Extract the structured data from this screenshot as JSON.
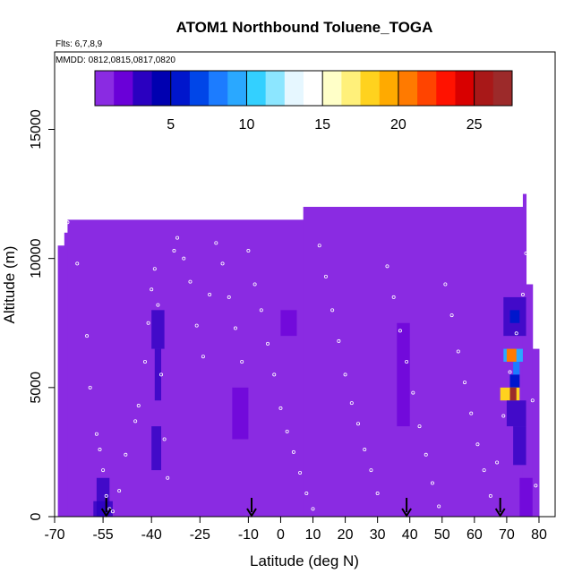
{
  "chart_data": {
    "type": "heatmap",
    "title": "ATOM1 Northbound Toluene_TOGA",
    "flights_label": "Flts: 6,7,8,9",
    "dates_label": "MMDD: 0812,0815,0817,0820",
    "xlabel": "Latitude (deg N)",
    "ylabel": "Altitude (m)",
    "xlim": [
      -70,
      85
    ],
    "ylim": [
      0,
      18000
    ],
    "x_ticks": [
      -70,
      -55,
      -40,
      -25,
      -10,
      0,
      10,
      20,
      30,
      40,
      50,
      60,
      70,
      80
    ],
    "x_tick_labels": [
      "-70",
      "-55",
      "-40",
      "-25",
      "-10",
      "0",
      "10",
      "20",
      "30",
      "40",
      "50",
      "60",
      "70",
      "80"
    ],
    "y_ticks": [
      0,
      5000,
      10000,
      15000
    ],
    "y_tick_labels": [
      "0",
      "5000",
      "10000",
      "15000"
    ],
    "colorbar": {
      "min": 0,
      "max": 27.5,
      "ticks": [
        5,
        10,
        15,
        20,
        25
      ],
      "tick_labels": [
        "5",
        "10",
        "15",
        "20",
        "25"
      ],
      "colors": [
        "#8a2be2",
        "#6a00d8",
        "#2a00c0",
        "#0000b0",
        "#0016cc",
        "#0046e8",
        "#1c7cff",
        "#2aa8ff",
        "#33d0ff",
        "#8ce6ff",
        "#e6f7ff",
        "#ffffff",
        "#ffffc8",
        "#fff07a",
        "#ffd21e",
        "#ffaa00",
        "#ff7a00",
        "#ff4400",
        "#ff1200",
        "#d80000",
        "#a81818",
        "#9c2a2a"
      ]
    },
    "background_value": 1.2,
    "field_extent": {
      "x": [
        -69,
        80
      ],
      "top_segments": [
        {
          "x": [
            -69,
            -67
          ],
          "top": 10500
        },
        {
          "x": [
            -67,
            -66
          ],
          "top": 11000
        },
        {
          "x": [
            -66,
            7
          ],
          "top": 11500
        },
        {
          "x": [
            7,
            75
          ],
          "top": 12000
        },
        {
          "x": [
            75,
            76
          ],
          "top": 12500
        },
        {
          "x": [
            76,
            78
          ],
          "top": 9000
        },
        {
          "x": [
            78,
            80
          ],
          "top": 6500
        }
      ]
    },
    "anomalies": [
      {
        "x": [
          -40,
          -36
        ],
        "y": [
          6500,
          8000
        ],
        "value": 3
      },
      {
        "x": [
          -39,
          -37
        ],
        "y": [
          4500,
          6500
        ],
        "value": 2.5
      },
      {
        "x": [
          -40,
          -37
        ],
        "y": [
          1800,
          3500
        ],
        "value": 2.5
      },
      {
        "x": [
          -57,
          -53
        ],
        "y": [
          0,
          1500
        ],
        "value": 3
      },
      {
        "x": [
          -58,
          -52
        ],
        "y": [
          0,
          600
        ],
        "value": 2.5
      },
      {
        "x": [
          -15,
          -10
        ],
        "y": [
          3000,
          5000
        ],
        "value": 2
      },
      {
        "x": [
          0,
          5
        ],
        "y": [
          7000,
          8000
        ],
        "value": 2
      },
      {
        "x": [
          36,
          40
        ],
        "y": [
          3500,
          7500
        ],
        "value": 2
      },
      {
        "x": [
          69,
          76
        ],
        "y": [
          7000,
          8500
        ],
        "value": 3.5
      },
      {
        "x": [
          71,
          74
        ],
        "y": [
          7500,
          8000
        ],
        "value": 6
      },
      {
        "x": [
          69,
          75
        ],
        "y": [
          6000,
          6500
        ],
        "value": 9
      },
      {
        "x": [
          70,
          73
        ],
        "y": [
          6000,
          6500
        ],
        "value": 20
      },
      {
        "x": [
          72,
          74
        ],
        "y": [
          5500,
          6000
        ],
        "value": 8
      },
      {
        "x": [
          71,
          74
        ],
        "y": [
          5000,
          5500
        ],
        "value": 5
      },
      {
        "x": [
          68,
          74
        ],
        "y": [
          4500,
          5000
        ],
        "value": 18
      },
      {
        "x": [
          71,
          73
        ],
        "y": [
          4500,
          5000
        ],
        "value": 27
      },
      {
        "x": [
          70,
          76
        ],
        "y": [
          3500,
          4500
        ],
        "value": 3
      },
      {
        "x": [
          72,
          76
        ],
        "y": [
          2000,
          3500
        ],
        "value": 2.5
      },
      {
        "x": [
          74,
          78
        ],
        "y": [
          0,
          1500
        ],
        "value": 2
      }
    ],
    "flight_track_points": [
      {
        "x": -66,
        "y": 11400
      },
      {
        "x": -63,
        "y": 9800
      },
      {
        "x": -60,
        "y": 7000
      },
      {
        "x": -59,
        "y": 5000
      },
      {
        "x": -57,
        "y": 3200
      },
      {
        "x": -56,
        "y": 2600
      },
      {
        "x": -55,
        "y": 1800
      },
      {
        "x": -54,
        "y": 800
      },
      {
        "x": -53,
        "y": 300
      },
      {
        "x": -52,
        "y": 200
      },
      {
        "x": -50,
        "y": 1000
      },
      {
        "x": -48,
        "y": 2400
      },
      {
        "x": -45,
        "y": 3700
      },
      {
        "x": -44,
        "y": 4300
      },
      {
        "x": -42,
        "y": 6000
      },
      {
        "x": -41,
        "y": 7500
      },
      {
        "x": -40,
        "y": 8800
      },
      {
        "x": -39,
        "y": 9600
      },
      {
        "x": -38,
        "y": 8200
      },
      {
        "x": -37,
        "y": 5500
      },
      {
        "x": -36,
        "y": 3000
      },
      {
        "x": -35,
        "y": 1500
      },
      {
        "x": -33,
        "y": 10300
      },
      {
        "x": -32,
        "y": 10800
      },
      {
        "x": -30,
        "y": 10000
      },
      {
        "x": -28,
        "y": 9100
      },
      {
        "x": -26,
        "y": 7400
      },
      {
        "x": -24,
        "y": 6200
      },
      {
        "x": -22,
        "y": 8600
      },
      {
        "x": -20,
        "y": 10600
      },
      {
        "x": -18,
        "y": 9800
      },
      {
        "x": -16,
        "y": 8500
      },
      {
        "x": -14,
        "y": 7300
      },
      {
        "x": -12,
        "y": 6000
      },
      {
        "x": -10,
        "y": 10300
      },
      {
        "x": -8,
        "y": 9000
      },
      {
        "x": -6,
        "y": 8000
      },
      {
        "x": -4,
        "y": 6700
      },
      {
        "x": -2,
        "y": 5500
      },
      {
        "x": 0,
        "y": 4200
      },
      {
        "x": 2,
        "y": 3300
      },
      {
        "x": 4,
        "y": 2500
      },
      {
        "x": 6,
        "y": 1700
      },
      {
        "x": 8,
        "y": 900
      },
      {
        "x": 10,
        "y": 300
      },
      {
        "x": 12,
        "y": 10500
      },
      {
        "x": 14,
        "y": 9300
      },
      {
        "x": 16,
        "y": 8000
      },
      {
        "x": 18,
        "y": 6800
      },
      {
        "x": 20,
        "y": 5500
      },
      {
        "x": 22,
        "y": 4400
      },
      {
        "x": 24,
        "y": 3600
      },
      {
        "x": 26,
        "y": 2600
      },
      {
        "x": 28,
        "y": 1800
      },
      {
        "x": 30,
        "y": 900
      },
      {
        "x": 33,
        "y": 9700
      },
      {
        "x": 35,
        "y": 8500
      },
      {
        "x": 37,
        "y": 7200
      },
      {
        "x": 39,
        "y": 6000
      },
      {
        "x": 41,
        "y": 4800
      },
      {
        "x": 43,
        "y": 3500
      },
      {
        "x": 45,
        "y": 2400
      },
      {
        "x": 47,
        "y": 1300
      },
      {
        "x": 49,
        "y": 400
      },
      {
        "x": 51,
        "y": 9000
      },
      {
        "x": 53,
        "y": 7800
      },
      {
        "x": 55,
        "y": 6400
      },
      {
        "x": 57,
        "y": 5200
      },
      {
        "x": 59,
        "y": 4000
      },
      {
        "x": 61,
        "y": 2800
      },
      {
        "x": 63,
        "y": 1800
      },
      {
        "x": 65,
        "y": 800
      },
      {
        "x": 67,
        "y": 2100
      },
      {
        "x": 69,
        "y": 3900
      },
      {
        "x": 71,
        "y": 5600
      },
      {
        "x": 73,
        "y": 7100
      },
      {
        "x": 75,
        "y": 8600
      },
      {
        "x": 76,
        "y": 10200
      },
      {
        "x": 78,
        "y": 4500
      },
      {
        "x": 79,
        "y": 1200
      }
    ],
    "arrow_markers": [
      -54,
      -9,
      39,
      68
    ]
  }
}
